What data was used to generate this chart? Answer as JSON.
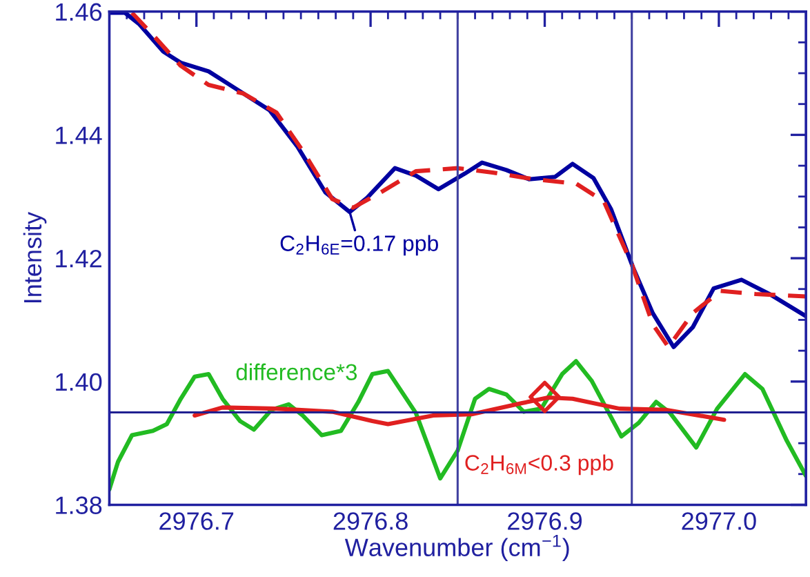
{
  "chart_data": {
    "type": "line",
    "xlabel": "Wavenumber (cm$^{−1}$)",
    "ylabel": "Intensity",
    "xlim": [
      2976.65,
      2977.05
    ],
    "ylim": [
      1.38,
      1.46
    ],
    "xticks": [
      2976.7,
      2976.8,
      2976.9,
      {
        "value": 2977.0,
        "label": "2977.0"
      }
    ],
    "yticks": [
      1.38,
      {
        "value": 1.4,
        "label": "1.40"
      },
      1.42,
      1.44,
      1.46
    ],
    "grid": false,
    "legend": false,
    "series": [
      {
        "color": "#0000a0",
        "line_style": "solid",
        "x": [
          2976.65,
          2976.659,
          2976.667,
          2976.681,
          2976.691,
          2976.707,
          2976.722,
          2976.742,
          2976.758,
          2976.774,
          2976.788,
          2976.798,
          2976.814,
          2976.826,
          2976.839,
          2976.854,
          2976.864,
          2976.878,
          2976.891,
          2976.906,
          2976.916,
          2976.928,
          2976.938,
          2976.951,
          2976.962,
          2976.974,
          2976.985,
          2976.997,
          2977.013,
          2977.029,
          2977.05
        ],
        "values": [
          1.4598,
          1.4598,
          1.458,
          1.4535,
          1.4517,
          1.4503,
          1.4476,
          1.444,
          1.4381,
          1.4307,
          1.4275,
          1.4298,
          1.4346,
          1.4334,
          1.4312,
          1.4337,
          1.4355,
          1.4343,
          1.4328,
          1.4332,
          1.4353,
          1.433,
          1.428,
          1.4183,
          1.4111,
          1.4056,
          1.4088,
          1.4151,
          1.4165,
          1.4142,
          1.4106
        ]
      },
      {
        "color": "#e02020",
        "line_style": "dashed",
        "x": [
          2976.663,
          2976.675,
          2976.691,
          2976.707,
          2976.727,
          2976.746,
          2976.762,
          2976.778,
          2976.79,
          2976.806,
          2976.826,
          2976.85,
          2976.87,
          2976.894,
          2976.918,
          2976.934,
          2976.95,
          2976.962,
          2976.971,
          2976.985,
          2977.001,
          2977.021,
          2977.05
        ],
        "values": [
          1.4598,
          1.4562,
          1.4512,
          1.4481,
          1.4467,
          1.4436,
          1.437,
          1.4296,
          1.4282,
          1.4307,
          1.4341,
          1.4346,
          1.4339,
          1.4328,
          1.4321,
          1.4292,
          1.419,
          1.4093,
          1.4056,
          1.4111,
          1.4147,
          1.4142,
          1.4138
        ]
      },
      {
        "name": "difference*3",
        "color": "#22bb22",
        "line_style": "solid",
        "x": [
          2976.65,
          2976.655,
          2976.663,
          2976.675,
          2976.683,
          2976.691,
          2976.699,
          2976.707,
          2976.715,
          2976.725,
          2976.733,
          2976.743,
          2976.753,
          2976.761,
          2976.772,
          2976.783,
          2976.793,
          2976.801,
          2976.81,
          2976.826,
          2976.84,
          2976.85,
          2976.86,
          2976.868,
          2976.878,
          2976.888,
          2976.898,
          2976.91,
          2976.918,
          2976.927,
          2976.944,
          2976.954,
          2976.964,
          2976.972,
          2976.987,
          2976.999,
          2977.015,
          2977.025,
          2977.039,
          2977.05
        ],
        "values": [
          1.3825,
          1.387,
          1.3913,
          1.392,
          1.3931,
          1.3972,
          1.4008,
          1.4012,
          1.3972,
          1.3936,
          1.3922,
          1.3954,
          1.3963,
          1.3945,
          1.3913,
          1.392,
          1.3967,
          1.4012,
          1.4017,
          1.3949,
          1.3843,
          1.3888,
          1.3972,
          1.3988,
          1.3979,
          1.3951,
          1.3956,
          1.4012,
          1.4033,
          1.4001,
          1.3911,
          1.3933,
          1.3967,
          1.3949,
          1.3893,
          1.3956,
          1.4012,
          1.3988,
          1.3904,
          1.3847
        ]
      },
      {
        "color": "#e02020",
        "line_style": "solid",
        "x": [
          2976.699,
          2976.715,
          2976.746,
          2976.778,
          2976.801,
          2976.81,
          2976.836,
          2976.858,
          2976.887,
          2976.902,
          2976.916,
          2976.943,
          2976.97,
          2977.003
        ],
        "values": [
          1.3945,
          1.3958,
          1.3956,
          1.3951,
          1.3936,
          1.3931,
          1.3945,
          1.3947,
          1.3965,
          1.3974,
          1.3972,
          1.3956,
          1.3954,
          1.3938
        ]
      },
      {
        "type": "scatter",
        "marker": "diamond",
        "color": "#e02020",
        "x": [
          2976.9
        ],
        "values": [
          1.3975
        ]
      }
    ],
    "ref_lines": [
      {
        "axis": "x",
        "value": 2976.85,
        "color": "#4040a0"
      },
      {
        "axis": "x",
        "value": 2976.95,
        "color": "#4040a0"
      },
      {
        "axis": "y",
        "value": 1.395,
        "color": "#202090"
      }
    ],
    "annotations": [
      {
        "text": "C$_{2}$H$_{6E}$=0.17 ppb",
        "x": 2976.788,
        "y": 1.4275
      },
      {
        "text": "C$_{2}$H$_{6M}$<0.3 ppb",
        "x": 2976.9,
        "y": 1.3975
      }
    ]
  }
}
